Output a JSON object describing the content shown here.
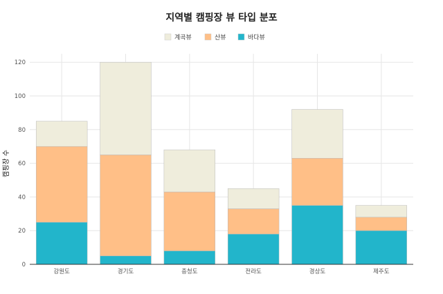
{
  "chart_data": {
    "type": "bar",
    "stacked": true,
    "title": "지역별 캠핑장 뷰 타입 분포",
    "xlabel": "",
    "ylabel": "캠핑장 수",
    "categories": [
      "강원도",
      "경기도",
      "충청도",
      "전라도",
      "경상도",
      "제주도"
    ],
    "series": [
      {
        "name": "바다뷰",
        "color": "#22b5cb",
        "values": [
          25,
          5,
          8,
          18,
          35,
          20
        ]
      },
      {
        "name": "산뷰",
        "color": "#ffbf87",
        "values": [
          45,
          60,
          35,
          15,
          28,
          8
        ]
      },
      {
        "name": "계곡뷰",
        "color": "#efeddc",
        "values": [
          15,
          55,
          25,
          12,
          29,
          7
        ]
      }
    ],
    "legend_order": [
      "계곡뷰",
      "산뷰",
      "바다뷰"
    ],
    "legend_position": "top-center",
    "ylim": [
      0,
      125
    ],
    "yticks": [
      0,
      20,
      40,
      60,
      80,
      100,
      120
    ],
    "grid": true
  }
}
